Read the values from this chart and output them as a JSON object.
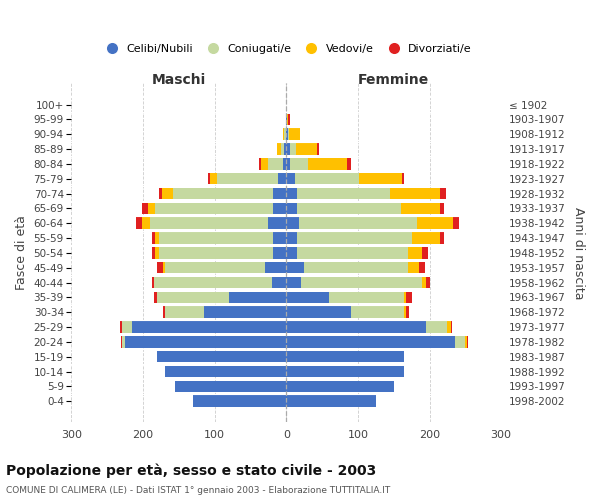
{
  "age_groups": [
    "0-4",
    "5-9",
    "10-14",
    "15-19",
    "20-24",
    "25-29",
    "30-34",
    "35-39",
    "40-44",
    "45-49",
    "50-54",
    "55-59",
    "60-64",
    "65-69",
    "70-74",
    "75-79",
    "80-84",
    "85-89",
    "90-94",
    "95-99",
    "100+"
  ],
  "birth_years": [
    "1998-2002",
    "1993-1997",
    "1988-1992",
    "1983-1987",
    "1978-1982",
    "1973-1977",
    "1968-1972",
    "1963-1967",
    "1958-1962",
    "1953-1957",
    "1948-1952",
    "1943-1947",
    "1938-1942",
    "1933-1937",
    "1928-1932",
    "1923-1927",
    "1918-1922",
    "1913-1917",
    "1908-1912",
    "1903-1907",
    "≤ 1902"
  ],
  "maschi": {
    "celibi": [
      130,
      155,
      170,
      180,
      225,
      215,
      115,
      80,
      20,
      30,
      18,
      18,
      25,
      18,
      18,
      12,
      5,
      3,
      1,
      0,
      0
    ],
    "coniugati": [
      0,
      0,
      0,
      0,
      5,
      15,
      55,
      100,
      165,
      140,
      160,
      160,
      165,
      165,
      140,
      85,
      20,
      5,
      2,
      0,
      0
    ],
    "vedovi": [
      0,
      0,
      0,
      0,
      0,
      0,
      0,
      0,
      0,
      2,
      5,
      5,
      12,
      10,
      15,
      10,
      10,
      5,
      2,
      0,
      0
    ],
    "divorziati": [
      0,
      0,
      0,
      0,
      1,
      2,
      2,
      5,
      3,
      8,
      4,
      5,
      8,
      8,
      5,
      2,
      3,
      0,
      0,
      0,
      0
    ]
  },
  "femmine": {
    "nubili": [
      125,
      150,
      165,
      165,
      235,
      195,
      90,
      60,
      20,
      25,
      15,
      15,
      18,
      15,
      15,
      12,
      5,
      5,
      2,
      1,
      0
    ],
    "coniugate": [
      0,
      0,
      0,
      0,
      15,
      30,
      75,
      105,
      170,
      145,
      155,
      160,
      165,
      145,
      130,
      90,
      25,
      8,
      2,
      0,
      0
    ],
    "vedove": [
      0,
      0,
      0,
      0,
      2,
      5,
      2,
      2,
      5,
      15,
      20,
      40,
      50,
      55,
      70,
      60,
      55,
      30,
      15,
      2,
      0
    ],
    "divorziate": [
      0,
      0,
      0,
      0,
      2,
      2,
      5,
      8,
      5,
      8,
      8,
      5,
      8,
      5,
      8,
      2,
      5,
      3,
      0,
      2,
      0
    ]
  },
  "colors": {
    "celibi": "#4472c4",
    "coniugati": "#c5d9a0",
    "vedovi": "#ffc000",
    "divorziati": "#e02020"
  },
  "title": "Popolazione per età, sesso e stato civile - 2003",
  "subtitle": "COMUNE DI CALIMERA (LE) - Dati ISTAT 1° gennaio 2003 - Elaborazione TUTTITALIA.IT",
  "xlabel_left": "Maschi",
  "xlabel_right": "Femmine",
  "ylabel_left": "Fasce di età",
  "ylabel_right": "Anni di nascita",
  "xlim": 300,
  "legend_labels": [
    "Celibi/Nubili",
    "Coniugati/e",
    "Vedovi/e",
    "Divorziati/e"
  ],
  "background_color": "#ffffff",
  "grid_color": "#cccccc"
}
